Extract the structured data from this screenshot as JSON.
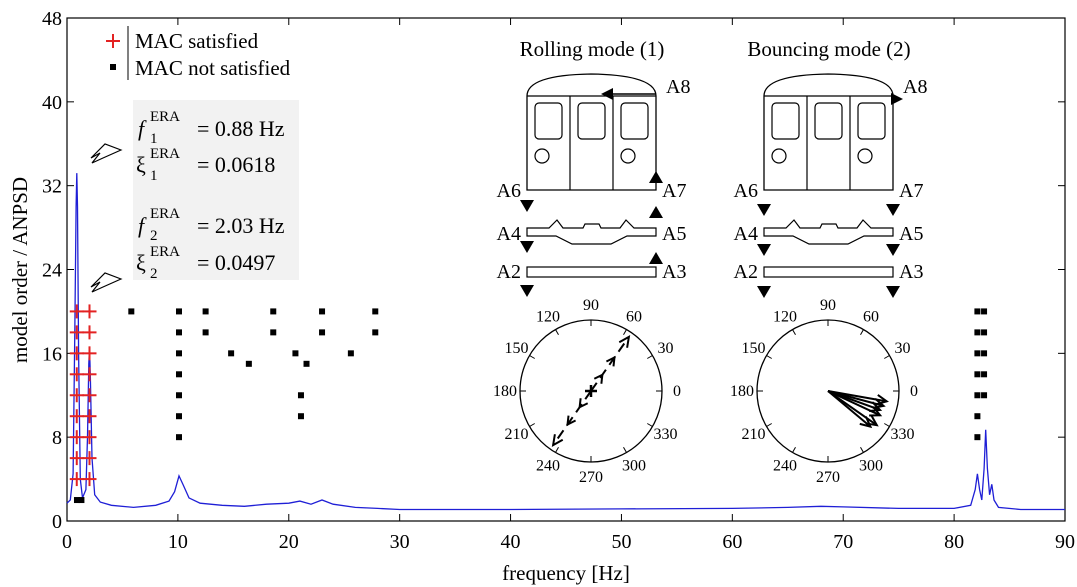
{
  "chart_data": {
    "type": "line+scatter",
    "xlabel": "frequency [Hz]",
    "ylabel": "model order / ANPSD",
    "xlim": [
      0,
      90
    ],
    "ylim": [
      0,
      48
    ],
    "xticks": [
      "0",
      "10",
      "20",
      "30",
      "40",
      "50",
      "60",
      "70",
      "80",
      "90"
    ],
    "yticks": [
      "0",
      "8",
      "16",
      "24",
      "32",
      "40",
      "48"
    ],
    "grid": false,
    "legend_position": "top-left",
    "colors": {
      "anpsd_line": "#1f1fd6",
      "mac_satisfied": "#e32222",
      "mac_not_satisfied": "#000000"
    },
    "legend": [
      {
        "marker": "+",
        "label": "MAC satisfied",
        "color": "#e32222"
      },
      {
        "marker": "■",
        "label": "MAC not satisfied",
        "color": "#000000"
      }
    ],
    "series": [
      {
        "name": "MAC satisfied",
        "kind": "scatter",
        "marker": "+",
        "points": [
          [
            0.88,
            4
          ],
          [
            0.88,
            6
          ],
          [
            0.88,
            8
          ],
          [
            0.88,
            10
          ],
          [
            0.88,
            12
          ],
          [
            0.88,
            14
          ],
          [
            0.88,
            16
          ],
          [
            0.88,
            18
          ],
          [
            0.88,
            20
          ],
          [
            2.03,
            4
          ],
          [
            2.03,
            6
          ],
          [
            2.03,
            8
          ],
          [
            2.03,
            10
          ],
          [
            2.03,
            12
          ],
          [
            2.03,
            14
          ],
          [
            2.03,
            16
          ],
          [
            2.03,
            18
          ],
          [
            2.03,
            20
          ]
        ]
      },
      {
        "name": "MAC not satisfied",
        "kind": "scatter",
        "marker": "square",
        "points": [
          [
            0.9,
            2
          ],
          [
            1.3,
            2
          ],
          [
            5.8,
            20
          ],
          [
            10.1,
            8
          ],
          [
            10.1,
            10
          ],
          [
            10.1,
            12
          ],
          [
            10.1,
            14
          ],
          [
            10.1,
            16
          ],
          [
            10.1,
            18
          ],
          [
            10.1,
            20
          ],
          [
            12.5,
            18
          ],
          [
            12.5,
            20
          ],
          [
            14.8,
            16
          ],
          [
            16.4,
            15
          ],
          [
            18.6,
            18
          ],
          [
            18.6,
            20
          ],
          [
            20.6,
            16
          ],
          [
            21.1,
            12
          ],
          [
            21.1,
            10
          ],
          [
            21.6,
            15
          ],
          [
            23.0,
            18
          ],
          [
            23.0,
            20
          ],
          [
            25.6,
            16
          ],
          [
            27.8,
            18
          ],
          [
            27.8,
            20
          ],
          [
            82.1,
            8
          ],
          [
            82.1,
            10
          ],
          [
            82.1,
            12
          ],
          [
            82.1,
            14
          ],
          [
            82.1,
            16
          ],
          [
            82.1,
            18
          ],
          [
            82.1,
            20
          ],
          [
            82.7,
            12
          ],
          [
            82.7,
            14
          ],
          [
            82.7,
            16
          ],
          [
            82.7,
            18
          ],
          [
            82.7,
            20
          ]
        ]
      },
      {
        "name": "ANPSD",
        "kind": "line",
        "points": [
          [
            0,
            1.7
          ],
          [
            0.3,
            2.0
          ],
          [
            0.55,
            4.5
          ],
          [
            0.7,
            18
          ],
          [
            0.82,
            30
          ],
          [
            0.88,
            33.2
          ],
          [
            0.95,
            30
          ],
          [
            1.05,
            16
          ],
          [
            1.2,
            4
          ],
          [
            1.4,
            2.2
          ],
          [
            1.7,
            3
          ],
          [
            1.85,
            8
          ],
          [
            1.97,
            15
          ],
          [
            2.03,
            16.6
          ],
          [
            2.1,
            14
          ],
          [
            2.25,
            6
          ],
          [
            2.5,
            2.5
          ],
          [
            3,
            1.8
          ],
          [
            4,
            1.5
          ],
          [
            6,
            1.3
          ],
          [
            8,
            1.5
          ],
          [
            9.2,
            1.9
          ],
          [
            9.7,
            2.8
          ],
          [
            10.1,
            4.3
          ],
          [
            10.5,
            3.4
          ],
          [
            11,
            2.2
          ],
          [
            12,
            1.7
          ],
          [
            14,
            1.5
          ],
          [
            16,
            1.4
          ],
          [
            18,
            1.6
          ],
          [
            20,
            1.7
          ],
          [
            21,
            1.9
          ],
          [
            22,
            1.6
          ],
          [
            23,
            2.0
          ],
          [
            24,
            1.6
          ],
          [
            26,
            1.3
          ],
          [
            28,
            1.2
          ],
          [
            30,
            1.1
          ],
          [
            35,
            1.1
          ],
          [
            40,
            1.1
          ],
          [
            50,
            1.15
          ],
          [
            60,
            1.2
          ],
          [
            65,
            1.3
          ],
          [
            68,
            1.4
          ],
          [
            70,
            1.35
          ],
          [
            75,
            1.2
          ],
          [
            80,
            1.2
          ],
          [
            81.5,
            1.5
          ],
          [
            81.9,
            3
          ],
          [
            82.1,
            4.5
          ],
          [
            82.3,
            3
          ],
          [
            82.5,
            2
          ],
          [
            82.7,
            5
          ],
          [
            82.85,
            8.7
          ],
          [
            83.0,
            5
          ],
          [
            83.2,
            2.5
          ],
          [
            83.4,
            3.5
          ],
          [
            83.6,
            2
          ],
          [
            84,
            1.3
          ],
          [
            86,
            1.1
          ],
          [
            90,
            1.1
          ]
        ]
      }
    ],
    "annotations": [
      {
        "symbol": "f",
        "superscript": "ERA",
        "subscript": "1",
        "text": "= 0.88 Hz"
      },
      {
        "symbol": "ξ",
        "superscript": "ERA",
        "subscript": "1",
        "text": "= 0.0618"
      },
      {
        "symbol": "f",
        "superscript": "ERA",
        "subscript": "2",
        "text": "= 2.03 Hz"
      },
      {
        "symbol": "ξ",
        "superscript": "ERA",
        "subscript": "2",
        "text": "= 0.0497"
      }
    ],
    "mode_diagrams": [
      {
        "title": "Rolling mode (1)",
        "sensor_labels": [
          "A8",
          "A6",
          "A7",
          "A4",
          "A5",
          "A2",
          "A3"
        ],
        "polar_labels": [
          "90",
          "60",
          "30",
          "0",
          "330",
          "300",
          "270",
          "240",
          "210",
          "180",
          "150",
          "120"
        ],
        "phasor_angles_deg": [
          55,
          235
        ]
      },
      {
        "title": "Bouncing mode (2)",
        "sensor_labels": [
          "A8",
          "A6",
          "A7",
          "A4",
          "A5",
          "A2",
          "A3"
        ],
        "polar_labels": [
          "90",
          "60",
          "30",
          "0",
          "330",
          "300",
          "270",
          "240",
          "210",
          "180",
          "150",
          "120"
        ],
        "phasor_angles_deg": [
          340,
          335,
          325,
          320,
          345,
          350
        ]
      }
    ]
  }
}
